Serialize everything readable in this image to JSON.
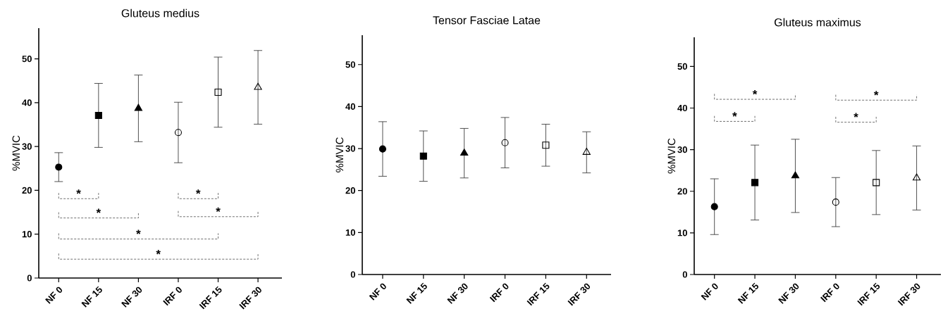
{
  "chart_data": [
    {
      "type": "scatter",
      "title": "Gluteus medius",
      "ylabel": "%MVIC",
      "categories": [
        "NF 0",
        "NF 15",
        "NF 30",
        "IRF 0",
        "IRF 15",
        "IRF 30"
      ],
      "ylim": [
        0,
        57
      ],
      "yticks": [
        0,
        10,
        20,
        30,
        40,
        50
      ],
      "series": [
        {
          "color": "#000000",
          "marker": "circle",
          "values": [
            25.3,
            null,
            null,
            null,
            null,
            null
          ],
          "errors": [
            3.3,
            null,
            null,
            null,
            null,
            null
          ]
        },
        {
          "color": "#000000",
          "marker": "square",
          "values": [
            null,
            37.1,
            null,
            null,
            null,
            null
          ],
          "errors": [
            null,
            7.3,
            null,
            null,
            null,
            null
          ]
        },
        {
          "color": "#000000",
          "marker": "triangle",
          "values": [
            null,
            null,
            38.7,
            null,
            null,
            null
          ],
          "errors": [
            null,
            null,
            7.6,
            null,
            null,
            null
          ]
        },
        {
          "color": "#000000",
          "marker": "circle-open",
          "values": [
            null,
            null,
            null,
            33.2,
            null,
            null
          ],
          "errors": [
            null,
            null,
            null,
            6.9,
            null,
            null
          ]
        },
        {
          "color": "#000000",
          "marker": "square-open",
          "values": [
            null,
            null,
            null,
            null,
            42.4,
            null
          ],
          "errors": [
            null,
            null,
            null,
            null,
            8.0,
            null
          ]
        },
        {
          "color": "#000000",
          "marker": "triangle-open",
          "values": [
            null,
            null,
            null,
            null,
            null,
            43.5
          ],
          "errors": [
            null,
            null,
            null,
            null,
            null,
            8.4
          ]
        }
      ],
      "annotations": [
        "*",
        "*",
        "*",
        "*",
        "*",
        "*"
      ]
    },
    {
      "type": "scatter",
      "title": "Tensor Fasciae Latae",
      "ylabel": "%MVIC",
      "categories": [
        "NF 0",
        "NF 15",
        "NF 30",
        "IRF 0",
        "IRF 15",
        "IRF 30"
      ],
      "ylim": [
        0,
        57
      ],
      "yticks": [
        0,
        10,
        20,
        30,
        40,
        50
      ],
      "series": [
        {
          "color": "#000000",
          "marker": "circle",
          "values": [
            29.9,
            null,
            null,
            null,
            null,
            null
          ],
          "errors": [
            6.5,
            null,
            null,
            null,
            null,
            null
          ]
        },
        {
          "color": "#000000",
          "marker": "square",
          "values": [
            null,
            28.2,
            null,
            null,
            null,
            null
          ],
          "errors": [
            null,
            6.0,
            null,
            null,
            null,
            null
          ]
        },
        {
          "color": "#000000",
          "marker": "triangle",
          "values": [
            null,
            null,
            28.9,
            null,
            null,
            null
          ],
          "errors": [
            null,
            null,
            5.9,
            null,
            null,
            null
          ]
        },
        {
          "color": "#000000",
          "marker": "circle-open",
          "values": [
            null,
            null,
            null,
            31.4,
            null,
            null
          ],
          "errors": [
            null,
            null,
            null,
            6.0,
            null,
            null
          ]
        },
        {
          "color": "#000000",
          "marker": "square-open",
          "values": [
            null,
            null,
            null,
            null,
            30.8,
            null
          ],
          "errors": [
            null,
            null,
            null,
            null,
            5.0,
            null
          ]
        },
        {
          "color": "#000000",
          "marker": "triangle-open",
          "values": [
            null,
            null,
            null,
            null,
            null,
            29.1
          ],
          "errors": [
            null,
            null,
            null,
            null,
            null,
            4.9
          ]
        }
      ]
    },
    {
      "type": "scatter",
      "title": "Gluteus maximus",
      "ylabel": "%MVIC",
      "categories": [
        "NF 0",
        "NF 15",
        "NF 30",
        "IRF 0",
        "IRF 15",
        "IRF 30"
      ],
      "ylim": [
        0,
        57
      ],
      "yticks": [
        0,
        10,
        20,
        30,
        40,
        50
      ],
      "series": [
        {
          "color": "#000000",
          "marker": "circle",
          "values": [
            16.3,
            null,
            null,
            null,
            null,
            null
          ],
          "errors": [
            6.7,
            null,
            null,
            null,
            null,
            null
          ]
        },
        {
          "color": "#000000",
          "marker": "square",
          "values": [
            null,
            22.1,
            null,
            null,
            null,
            null
          ],
          "errors": [
            null,
            9.0,
            null,
            null,
            null,
            null
          ]
        },
        {
          "color": "#000000",
          "marker": "triangle",
          "values": [
            null,
            null,
            23.7,
            null,
            null,
            null
          ],
          "errors": [
            null,
            null,
            8.8,
            null,
            null,
            null
          ]
        },
        {
          "color": "#000000",
          "marker": "circle-open",
          "values": [
            null,
            null,
            null,
            17.4,
            null,
            null
          ],
          "errors": [
            null,
            null,
            null,
            5.9,
            null,
            null
          ]
        },
        {
          "color": "#000000",
          "marker": "square-open",
          "values": [
            null,
            null,
            null,
            null,
            22.1,
            null
          ],
          "errors": [
            null,
            null,
            null,
            null,
            7.7,
            null
          ]
        },
        {
          "color": "#000000",
          "marker": "triangle-open",
          "values": [
            null,
            null,
            null,
            null,
            null,
            23.2
          ],
          "errors": [
            null,
            null,
            null,
            null,
            null,
            7.7
          ]
        }
      ],
      "annotations": [
        "*",
        "*",
        "*",
        "*"
      ]
    }
  ]
}
